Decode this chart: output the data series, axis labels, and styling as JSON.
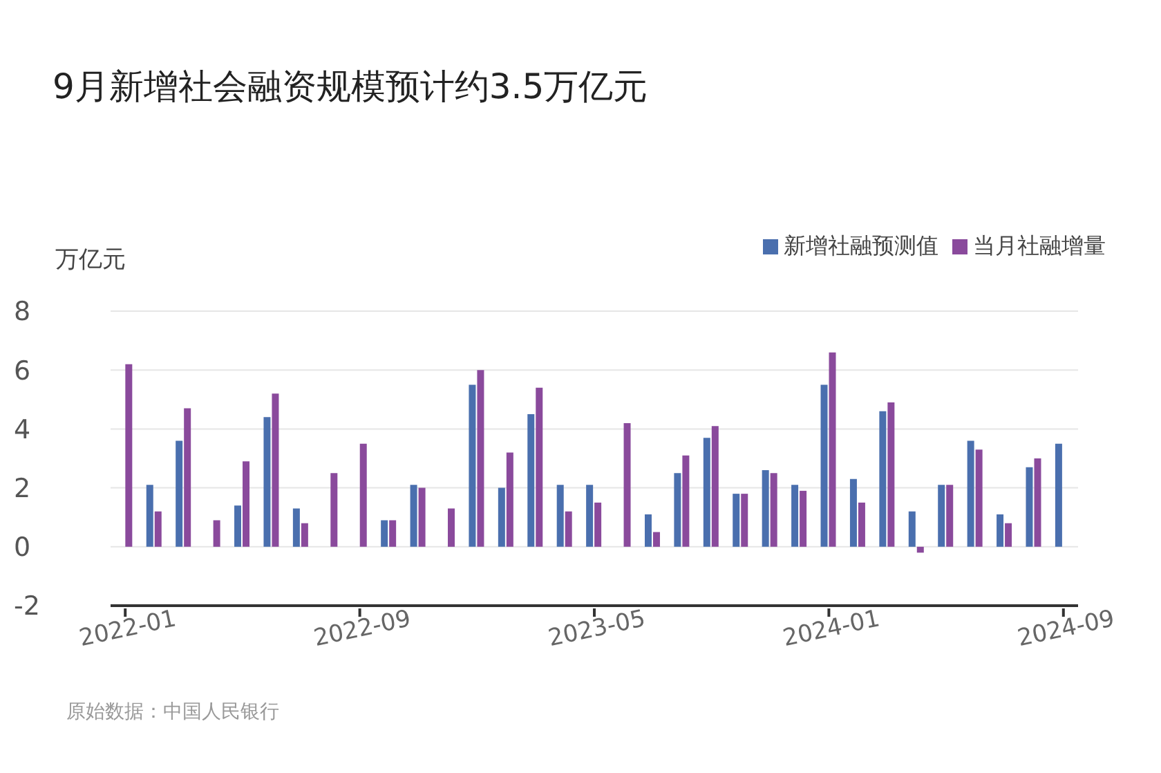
{
  "chart_data": {
    "type": "bar",
    "title": "9月新增社会融资规模预计约3.5万亿元",
    "ylabel": "万亿元",
    "categories": [
      "2022-01",
      null,
      null,
      null,
      null,
      null,
      null,
      null,
      "2022-09",
      null,
      null,
      null,
      null,
      null,
      null,
      null,
      "2023-05",
      null,
      null,
      null,
      null,
      null,
      null,
      null,
      "2024-01",
      null,
      null,
      null,
      null,
      null,
      null,
      null,
      "2024-09"
    ],
    "series": [
      {
        "name": "新增社融预测值",
        "color": "#4a6fae",
        "values": [
          null,
          2.1,
          3.6,
          null,
          1.4,
          4.4,
          1.3,
          null,
          null,
          0.9,
          2.1,
          null,
          5.5,
          2.0,
          4.5,
          2.1,
          2.1,
          null,
          1.1,
          2.5,
          3.7,
          1.8,
          2.6,
          2.1,
          5.5,
          2.3,
          4.6,
          1.2,
          2.1,
          3.6,
          1.1,
          2.7,
          3.5
        ]
      },
      {
        "name": "当月社融增量",
        "color": "#8a4a9c",
        "values": [
          6.2,
          1.2,
          4.7,
          0.9,
          2.9,
          5.2,
          0.8,
          2.5,
          3.5,
          0.9,
          2.0,
          1.3,
          6.0,
          3.2,
          5.4,
          1.2,
          1.5,
          4.2,
          0.5,
          3.1,
          4.1,
          1.8,
          2.5,
          1.9,
          6.6,
          1.5,
          4.9,
          -0.2,
          2.1,
          3.3,
          0.8,
          3.0,
          null
        ]
      }
    ],
    "ylim": [
      -2,
      8
    ],
    "yticks": [
      8,
      6,
      4,
      2,
      0,
      -2
    ],
    "grid": "y",
    "legend": "top right",
    "annotations": [
      "原始数据：中国人民银行"
    ]
  }
}
